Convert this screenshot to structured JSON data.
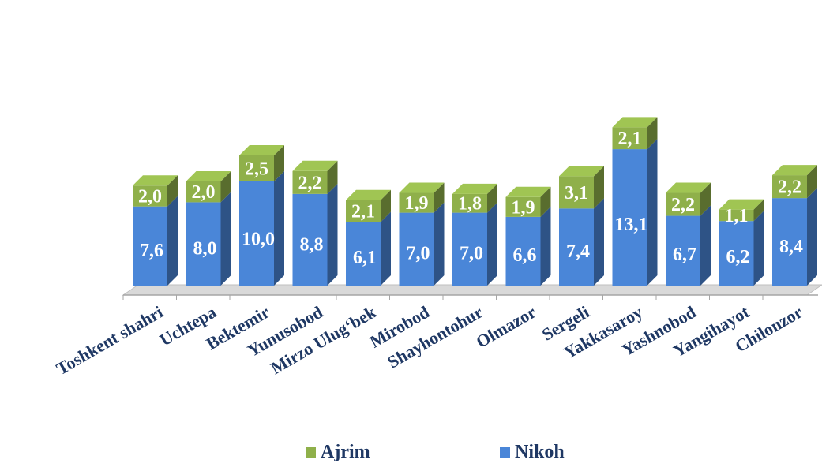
{
  "chart_data": {
    "type": "bar",
    "stacked": true,
    "style": "3d-columns",
    "categories": [
      "Toshkent shahri",
      "Uchtepa",
      "Bektemir",
      "Yunusobod",
      "Mirzo Ulug‘bek",
      "Mirobod",
      "Shayhontohur",
      "Olmazor",
      "Sergeli",
      "Yakkasaroy",
      "Yashnobod",
      "Yangihayot",
      "Chilonzor"
    ],
    "series": [
      {
        "name": "Nikoh",
        "color": "#4a86d8",
        "values": [
          7.6,
          8.0,
          10.0,
          8.8,
          6.1,
          7.0,
          7.0,
          6.6,
          7.4,
          13.1,
          6.7,
          6.2,
          8.4
        ],
        "labels": [
          "7,6",
          "8,0",
          "10,0",
          "8,8",
          "6,1",
          "7,0",
          "7,0",
          "6,6",
          "7,4",
          "13,1",
          "6,7",
          "6,2",
          "8,4"
        ]
      },
      {
        "name": "Ajrim",
        "color": "#8fb04a",
        "values": [
          2.0,
          2.0,
          2.5,
          2.2,
          2.1,
          1.9,
          1.8,
          1.9,
          3.1,
          2.1,
          2.2,
          1.1,
          2.2
        ],
        "labels": [
          "2,0",
          "2,0",
          "2,5",
          "2,2",
          "2,1",
          "1,9",
          "1,8",
          "1,9",
          "3,1",
          "2,1",
          "2,2",
          "1,1",
          "2,2"
        ]
      }
    ],
    "legend": {
      "placement": "bottom",
      "items": [
        "Ajrim",
        "Nikoh"
      ]
    },
    "title": "",
    "xlabel": "",
    "ylabel": ""
  }
}
